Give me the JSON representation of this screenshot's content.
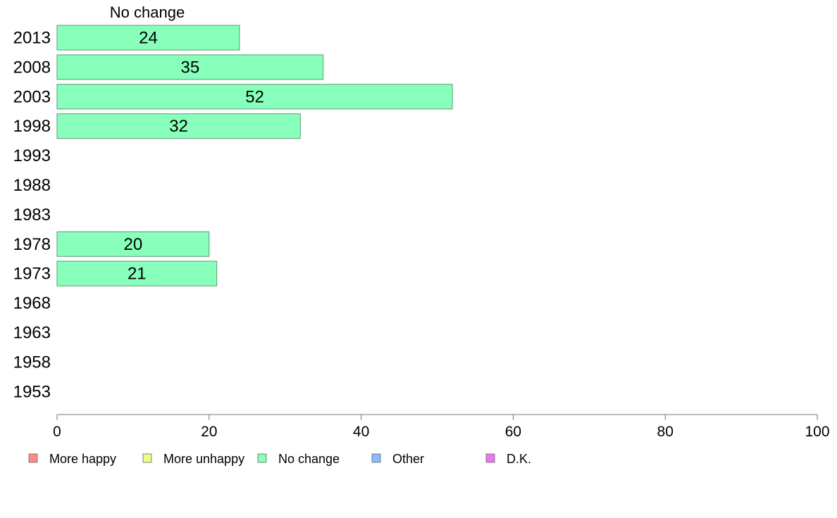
{
  "chart_data": {
    "type": "bar",
    "orientation": "horizontal",
    "panel_title": "No change",
    "categories": [
      "2013",
      "2008",
      "2003",
      "1998",
      "1993",
      "1988",
      "1983",
      "1978",
      "1973",
      "1968",
      "1963",
      "1958",
      "1953"
    ],
    "series": [
      {
        "name": "No change",
        "color": "#88ffbb",
        "values": [
          24,
          35,
          52,
          32,
          null,
          null,
          null,
          20,
          21,
          null,
          null,
          null,
          null
        ]
      }
    ],
    "xlim": [
      0,
      100
    ],
    "xticks": [
      0,
      20,
      40,
      60,
      80,
      100
    ],
    "grid": false,
    "legend": {
      "position": "bottom-left",
      "items": [
        {
          "label": "More happy",
          "color": "#ff8888"
        },
        {
          "label": "More unhappy",
          "color": "#eeff88"
        },
        {
          "label": "No change",
          "color": "#88ffbb"
        },
        {
          "label": "Other",
          "color": "#88bbff"
        },
        {
          "label": "D.K.",
          "color": "#ee77ee"
        }
      ]
    }
  }
}
